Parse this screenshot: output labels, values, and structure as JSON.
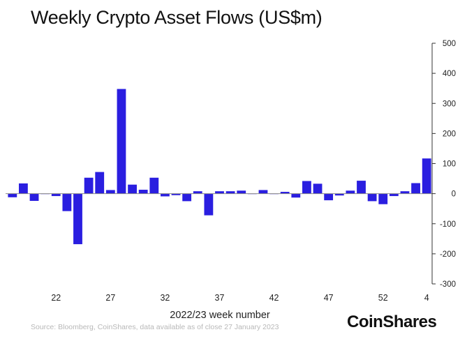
{
  "title": "Weekly Crypto Asset Flows (US$m)",
  "source": "Source: Bloomberg, CoinShares, data available as of close 27 January 2023",
  "brand": "CoinShares",
  "colors": {
    "bar": "#2a1ee0",
    "axis": "#333333",
    "zero_line": "#888888"
  },
  "chart_data": {
    "type": "bar",
    "title": "Weekly Crypto Asset Flows (US$m)",
    "xlabel": "2022/23 week number",
    "ylabel": "",
    "ylim": [
      -300,
      500
    ],
    "y_ticks": [
      500,
      400,
      300,
      200,
      100,
      0,
      -100,
      -200,
      -300
    ],
    "y_axis_side": "right",
    "x_tick_labels": [
      "22",
      "27",
      "32",
      "37",
      "42",
      "47",
      "52",
      "4"
    ],
    "categories": [
      "18",
      "19",
      "20",
      "21",
      "22",
      "23",
      "24",
      "25",
      "26",
      "27",
      "28",
      "29",
      "30",
      "31",
      "32",
      "33",
      "34",
      "35",
      "36",
      "37",
      "38",
      "39",
      "40",
      "41",
      "42",
      "43",
      "44",
      "45",
      "46",
      "47",
      "48",
      "49",
      "50",
      "51",
      "52",
      "1",
      "2",
      "3",
      "4"
    ],
    "values": [
      -12,
      34,
      -24,
      0,
      -8,
      -58,
      -168,
      53,
      72,
      12,
      348,
      30,
      13,
      53,
      -9,
      -5,
      -25,
      8,
      -72,
      8,
      8,
      10,
      0,
      12,
      0,
      6,
      -13,
      42,
      33,
      -22,
      -6,
      10,
      43,
      -25,
      -35,
      -8,
      8,
      35,
      117
    ],
    "grid": false,
    "legend": "none"
  }
}
